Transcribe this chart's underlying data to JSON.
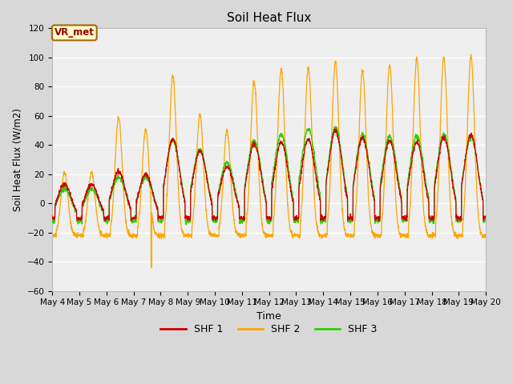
{
  "title": "Soil Heat Flux",
  "xlabel": "Time",
  "ylabel": "Soil Heat Flux (W/m2)",
  "ylim": [
    -60,
    120
  ],
  "yticks": [
    -60,
    -40,
    -20,
    0,
    20,
    40,
    60,
    80,
    100,
    120
  ],
  "colors": {
    "SHF 1": "#cc0000",
    "SHF 2": "#ffa500",
    "SHF 3": "#33cc00"
  },
  "background_color": "#d8d8d8",
  "plot_bg_color": "#efefef",
  "annotation_text": "VR_met",
  "annotation_bg": "#ffffcc",
  "annotation_border": "#aa6600",
  "annotation_text_color": "#990000",
  "n_days": 16,
  "start_day": 4,
  "shf1_amps": [
    13,
    13,
    22,
    20,
    44,
    36,
    25,
    41,
    42,
    44,
    50,
    45,
    43,
    42,
    45,
    47
  ],
  "shf2_amps": [
    21,
    21,
    59,
    51,
    88,
    61,
    50,
    84,
    92,
    93,
    97,
    91,
    95,
    99,
    100,
    101
  ],
  "shf3_amps": [
    10,
    10,
    18,
    18,
    43,
    37,
    28,
    43,
    47,
    51,
    52,
    47,
    46,
    46,
    47,
    45
  ],
  "shf1_night": -10,
  "shf2_night": -22,
  "shf3_night": -12
}
